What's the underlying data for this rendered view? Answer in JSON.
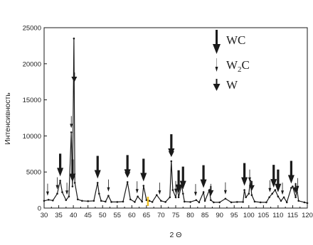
{
  "chart_data": {
    "type": "line",
    "xlabel": "2 Θ",
    "ylabel": "Интенсивность",
    "xlim": [
      30,
      120
    ],
    "ylim": [
      0,
      25000
    ],
    "xticks": [
      30,
      35,
      40,
      45,
      50,
      55,
      60,
      65,
      70,
      75,
      80,
      85,
      90,
      95,
      100,
      105,
      110,
      115,
      120
    ],
    "yticks": [
      0,
      5000,
      10000,
      15000,
      20000,
      25000
    ],
    "grid": false,
    "legend_position": "top-right",
    "series": [
      {
        "x": [
          30,
          31.5,
          33,
          34.5,
          35.5,
          36.2,
          37.5,
          38.5,
          39.3,
          39.7,
          40.2,
          40.5,
          41.5,
          43,
          45,
          47,
          48.3,
          48.8,
          49.5,
          51,
          52,
          53,
          55,
          57,
          58.5,
          59.5,
          61,
          62,
          63.5,
          64,
          65,
          66,
          67,
          68.5,
          70,
          71.5,
          73,
          73.5,
          74,
          75,
          75.5,
          76,
          77,
          77.5,
          78,
          80,
          82,
          83,
          84.5,
          85,
          86.5,
          87,
          88,
          90,
          92,
          94,
          96,
          98,
          98.5,
          99,
          100,
          100.5,
          101,
          102,
          104,
          106,
          107,
          108,
          109,
          110,
          111,
          112,
          113,
          114.5,
          115,
          116,
          116.5,
          117,
          119,
          120
        ],
        "y": [
          1000,
          1150,
          1050,
          2000,
          3800,
          2200,
          1100,
          1600,
          10500,
          3000,
          23500,
          3500,
          1200,
          1000,
          950,
          1000,
          3500,
          2000,
          1000,
          900,
          1700,
          850,
          850,
          900,
          3600,
          1200,
          850,
          1600,
          900,
          3100,
          1100,
          1000,
          850,
          1800,
          1000,
          850,
          1500,
          6500,
          2500,
          1500,
          3000,
          1500,
          3200,
          2000,
          900,
          850,
          1100,
          800,
          2200,
          1000,
          2500,
          1100,
          800,
          800,
          1300,
          800,
          850,
          850,
          2500,
          1500,
          2000,
          3800,
          1800,
          900,
          800,
          800,
          1500,
          2000,
          2500,
          1600,
          1000,
          1500,
          800,
          2800,
          3000,
          1500,
          2500,
          1000,
          800,
          700
        ]
      }
    ],
    "markers": {
      "WC": [
        35.5,
        39.7,
        48.3,
        58.5,
        64,
        73.5,
        76,
        77.5,
        84.5,
        98.5,
        108.5,
        110,
        114.5
      ],
      "W2C": [
        31.2,
        34.5,
        37.8,
        39.3,
        52,
        61.8,
        69.5,
        75,
        81.8,
        87,
        92,
        100.3,
        107.2,
        111.5,
        116.7
      ],
      "W": [
        40.3,
        58.5,
        73.5,
        87,
        101,
        116
      ]
    },
    "legend": [
      {
        "label_main": "WC",
        "label_sub": "",
        "label_tail": ""
      },
      {
        "label_main": "W",
        "label_sub": "2",
        "label_tail": "C"
      },
      {
        "label_main": "W",
        "label_sub": "",
        "label_tail": ""
      }
    ],
    "colors": {
      "line": "#1a1a1a",
      "stray_mark": "#f0c020"
    }
  }
}
